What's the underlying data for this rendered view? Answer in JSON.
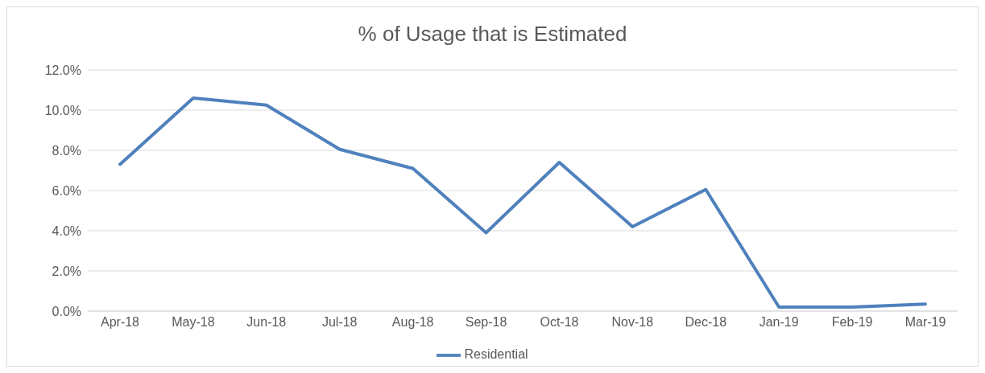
{
  "chart_data": {
    "type": "line",
    "title": "% of Usage that is Estimated",
    "categories": [
      "Apr-18",
      "May-18",
      "Jun-18",
      "Jul-18",
      "Aug-18",
      "Sep-18",
      "Oct-18",
      "Nov-18",
      "Dec-18",
      "Jan-19",
      "Feb-19",
      "Mar-19"
    ],
    "series": [
      {
        "name": "Residential",
        "color": "#4f81bd",
        "values": [
          7.3,
          10.6,
          10.25,
          8.05,
          7.1,
          3.9,
          7.4,
          4.2,
          6.05,
          0.2,
          0.2,
          0.35
        ]
      }
    ],
    "ylim": [
      0,
      12
    ],
    "yticks": [
      {
        "value": 0,
        "label": "0.0%"
      },
      {
        "value": 2,
        "label": "2.0%"
      },
      {
        "value": 4,
        "label": "4.0%"
      },
      {
        "value": 6,
        "label": "6.0%"
      },
      {
        "value": 8,
        "label": "8.0%"
      },
      {
        "value": 10,
        "label": "10.0%"
      },
      {
        "value": 12,
        "label": "12.0%"
      }
    ],
    "grid": "y",
    "legend": "bottom",
    "marker": "none",
    "line_style": "solid"
  }
}
